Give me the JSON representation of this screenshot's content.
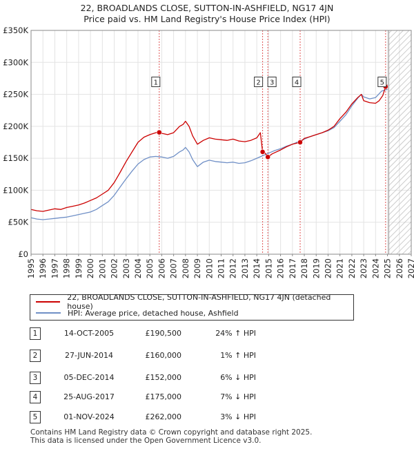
{
  "title_line1": "22, BROADLANDS CLOSE, SUTTON-IN-ASHFIELD, NG17 4JN",
  "title_line2": "Price paid vs. HM Land Registry's House Price Index (HPI)",
  "colors": {
    "property": "#cc0000",
    "hpi": "#6f8fc6",
    "hatch": "#bbbbbb",
    "vline": "#e05050",
    "grid": "#e3e3e3"
  },
  "chart_data": {
    "type": "line",
    "title": "Price paid vs. HM Land Registry's House Price Index (HPI)",
    "xlabel": "",
    "ylabel": "",
    "xlim": [
      1995,
      2027
    ],
    "ylim": [
      0,
      350000
    ],
    "y_ticks": [
      0,
      50000,
      100000,
      150000,
      200000,
      250000,
      300000,
      350000
    ],
    "y_tick_labels": [
      "£0",
      "£50K",
      "£100K",
      "£150K",
      "£200K",
      "£250K",
      "£300K",
      "£350K"
    ],
    "x_ticks": [
      1995,
      1996,
      1997,
      1998,
      1999,
      2000,
      2001,
      2002,
      2003,
      2004,
      2005,
      2006,
      2007,
      2008,
      2009,
      2010,
      2011,
      2012,
      2013,
      2014,
      2015,
      2016,
      2017,
      2018,
      2019,
      2020,
      2021,
      2022,
      2023,
      2024,
      2025,
      2026,
      2027
    ],
    "hatch_from": 2025.1,
    "series": [
      {
        "name": "22, BROADLANDS CLOSE, SUTTON-IN-ASHFIELD, NG17 4JN (detached house)",
        "color": "#cc0000",
        "x": [
          1995.0,
          1995.5,
          1996.0,
          1996.5,
          1997.0,
          1997.5,
          1998.0,
          1998.5,
          1999.0,
          1999.5,
          2000.0,
          2000.5,
          2001.0,
          2001.5,
          2002.0,
          2002.5,
          2003.0,
          2003.5,
          2004.0,
          2004.5,
          2005.0,
          2005.5,
          2005.79,
          2006.0,
          2006.5,
          2007.0,
          2007.5,
          2007.8,
          2008.0,
          2008.3,
          2008.6,
          2009.0,
          2009.5,
          2010.0,
          2010.5,
          2011.0,
          2011.5,
          2012.0,
          2012.5,
          2013.0,
          2013.5,
          2014.0,
          2014.3,
          2014.49,
          2014.7,
          2014.93,
          2015.3,
          2016.0,
          2016.5,
          2017.0,
          2017.65,
          2018.0,
          2018.5,
          2019.0,
          2019.5,
          2020.0,
          2020.5,
          2021.0,
          2021.5,
          2022.0,
          2022.5,
          2022.8,
          2023.0,
          2023.5,
          2024.0,
          2024.3,
          2024.6,
          2024.84,
          2025.0
        ],
        "values": [
          70000,
          68000,
          67000,
          69000,
          71000,
          70000,
          73000,
          75000,
          77000,
          80000,
          84000,
          88000,
          94000,
          100000,
          112000,
          128000,
          145000,
          160000,
          175000,
          183000,
          187000,
          190000,
          190500,
          189000,
          187000,
          190000,
          200000,
          203000,
          208000,
          200000,
          185000,
          172000,
          178000,
          182000,
          180000,
          179000,
          178000,
          180000,
          177000,
          176000,
          178000,
          182000,
          190000,
          160000,
          158000,
          152000,
          157000,
          163000,
          168000,
          172000,
          175000,
          181000,
          184000,
          187000,
          190000,
          194000,
          200000,
          212000,
          222000,
          235000,
          245000,
          250000,
          240000,
          237000,
          236000,
          240000,
          248000,
          262000,
          265000
        ]
      },
      {
        "name": "HPI: Average price, detached house, Ashfield",
        "color": "#6f8fc6",
        "x": [
          1995.0,
          1995.5,
          1996.0,
          1996.5,
          1997.0,
          1997.5,
          1998.0,
          1998.5,
          1999.0,
          1999.5,
          2000.0,
          2000.5,
          2001.0,
          2001.5,
          2002.0,
          2002.5,
          2003.0,
          2003.5,
          2004.0,
          2004.5,
          2005.0,
          2005.5,
          2006.0,
          2006.5,
          2007.0,
          2007.5,
          2007.8,
          2008.0,
          2008.3,
          2008.6,
          2009.0,
          2009.5,
          2010.0,
          2010.5,
          2011.0,
          2011.5,
          2012.0,
          2012.5,
          2013.0,
          2013.5,
          2014.0,
          2014.5,
          2015.0,
          2015.5,
          2016.0,
          2016.5,
          2017.0,
          2017.5,
          2018.0,
          2018.5,
          2019.0,
          2019.5,
          2020.0,
          2020.5,
          2021.0,
          2021.5,
          2022.0,
          2022.5,
          2022.8,
          2023.0,
          2023.5,
          2024.0,
          2024.5,
          2025.0
        ],
        "values": [
          57000,
          55000,
          54000,
          55000,
          56000,
          57000,
          58000,
          60000,
          62000,
          64000,
          66000,
          70000,
          76000,
          82000,
          92000,
          105000,
          118000,
          130000,
          141000,
          148000,
          152000,
          153000,
          152000,
          150000,
          153000,
          160000,
          163000,
          167000,
          160000,
          148000,
          137000,
          144000,
          147000,
          145000,
          144000,
          143000,
          144000,
          142000,
          143000,
          146000,
          150000,
          154000,
          158000,
          162000,
          165000,
          169000,
          172000,
          176000,
          180000,
          184000,
          187000,
          190000,
          193000,
          198000,
          208000,
          218000,
          232000,
          244000,
          250000,
          246000,
          243000,
          245000,
          255000,
          258000
        ]
      }
    ],
    "sales": [
      {
        "label": "1",
        "x": 2005.79,
        "value": 190500
      },
      {
        "label": "2",
        "x": 2014.49,
        "value": 160000
      },
      {
        "label": "3",
        "x": 2014.93,
        "value": 152000
      },
      {
        "label": "4",
        "x": 2017.65,
        "value": 175000
      },
      {
        "label": "5",
        "x": 2024.84,
        "value": 262000
      }
    ]
  },
  "legend": {
    "property_label": "22, BROADLANDS CLOSE, SUTTON-IN-ASHFIELD, NG17 4JN (detached house)",
    "hpi_label": "HPI: Average price, detached house, Ashfield"
  },
  "transactions": [
    {
      "num": "1",
      "date": "14-OCT-2005",
      "price": "£190,500",
      "hpi": "24% ↑ HPI"
    },
    {
      "num": "2",
      "date": "27-JUN-2014",
      "price": "£160,000",
      "hpi": "1% ↑ HPI"
    },
    {
      "num": "3",
      "date": "05-DEC-2014",
      "price": "£152,000",
      "hpi": "6% ↓ HPI"
    },
    {
      "num": "4",
      "date": "25-AUG-2017",
      "price": "£175,000",
      "hpi": "7% ↓ HPI"
    },
    {
      "num": "5",
      "date": "01-NOV-2024",
      "price": "£262,000",
      "hpi": "3% ↓ HPI"
    }
  ],
  "footer": {
    "line1": "Contains HM Land Registry data © Crown copyright and database right 2025.",
    "line2": "This data is licensed under the Open Government Licence v3.0."
  }
}
